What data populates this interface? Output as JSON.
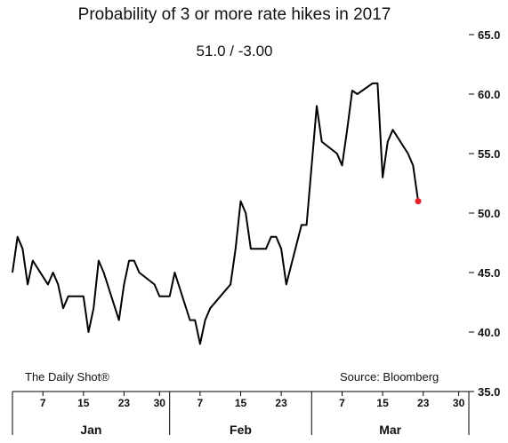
{
  "title": "Probability of 3 or more rate hikes in 2017",
  "subtitle": "51.0  /  -3.00",
  "footer_left": "The Daily Shot®",
  "footer_right": "Source: Bloomberg",
  "colors": {
    "line": "#000000",
    "marker": "#e8202a",
    "axis": "#000000",
    "grid": "#555555"
  },
  "chart_data": {
    "type": "line",
    "title": "Probability of 3 or more rate hikes in 2017",
    "subtitle": "51.0  /  -3.00",
    "xlabel": "",
    "ylabel": "",
    "ylim": [
      35,
      65
    ],
    "y_ticks": [
      "35.0",
      "40.0",
      "45.0",
      "50.0",
      "55.0",
      "60.0",
      "65.0"
    ],
    "y_tick_values": [
      35,
      40,
      45,
      50,
      55,
      60,
      65
    ],
    "y_axis_side": "right",
    "grid": false,
    "x_day_ticks": [
      {
        "day": 7,
        "label": "7"
      },
      {
        "day": 15,
        "label": "15"
      },
      {
        "day": 23,
        "label": "23"
      },
      {
        "day": 30,
        "label": "30"
      },
      {
        "day": 38,
        "label": "7"
      },
      {
        "day": 46,
        "label": "15"
      },
      {
        "day": 54,
        "label": "23"
      },
      {
        "day": 66,
        "label": "7"
      },
      {
        "day": 74,
        "label": "15"
      },
      {
        "day": 82,
        "label": "23"
      },
      {
        "day": 89,
        "label": "30"
      }
    ],
    "months": [
      {
        "label": "Jan",
        "center": 16.5
      },
      {
        "label": "Feb",
        "center": 46.0
      },
      {
        "label": "Mar",
        "center": 75.5
      }
    ],
    "month_separators": [
      32,
      60
    ],
    "x_range": [
      1,
      91
    ],
    "series": [
      {
        "values": [
          [
            1,
            45
          ],
          [
            2,
            48
          ],
          [
            3,
            47
          ],
          [
            4,
            44
          ],
          [
            5,
            46
          ],
          [
            8,
            44
          ],
          [
            9,
            45
          ],
          [
            10,
            44
          ],
          [
            11,
            42
          ],
          [
            12,
            43
          ],
          [
            15,
            43
          ],
          [
            16,
            40
          ],
          [
            17,
            42
          ],
          [
            18,
            46
          ],
          [
            19,
            45
          ],
          [
            22,
            41
          ],
          [
            23,
            44
          ],
          [
            24,
            46
          ],
          [
            25,
            46
          ],
          [
            26,
            45
          ],
          [
            29,
            44
          ],
          [
            30,
            43
          ],
          [
            31,
            43
          ],
          [
            32,
            43
          ],
          [
            33,
            45
          ],
          [
            36,
            41
          ],
          [
            37,
            41
          ],
          [
            38,
            39
          ],
          [
            39,
            41
          ],
          [
            40,
            42
          ],
          [
            44,
            44
          ],
          [
            45,
            47
          ],
          [
            46,
            51
          ],
          [
            47,
            50
          ],
          [
            48,
            47
          ],
          [
            51,
            47
          ],
          [
            52,
            48
          ],
          [
            53,
            48
          ],
          [
            54,
            47
          ],
          [
            55,
            44
          ],
          [
            58,
            49
          ],
          [
            59,
            49
          ],
          [
            60,
            54
          ],
          [
            61,
            59
          ],
          [
            62,
            56
          ],
          [
            65,
            55
          ],
          [
            66,
            54
          ],
          [
            67,
            57
          ],
          [
            68,
            60.3
          ],
          [
            69,
            60
          ],
          [
            72,
            60.9
          ],
          [
            73,
            60.9
          ],
          [
            74,
            53
          ],
          [
            75,
            56
          ],
          [
            76,
            57
          ],
          [
            79,
            55
          ],
          [
            80,
            54
          ],
          [
            81,
            51
          ]
        ]
      }
    ],
    "last_point": {
      "day": 81,
      "value": 51.0,
      "change": -3.0
    }
  }
}
